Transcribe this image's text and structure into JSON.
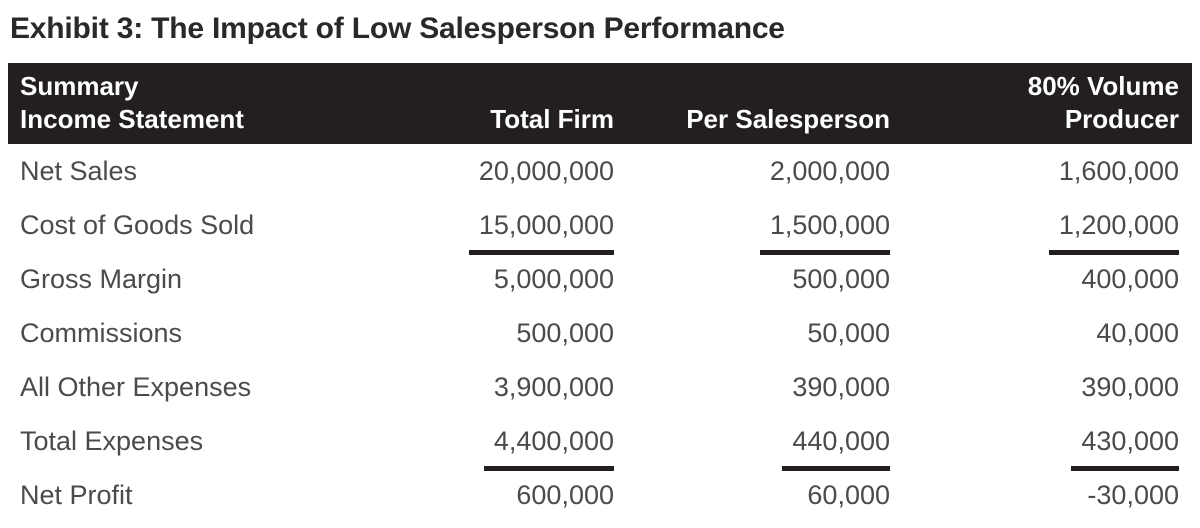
{
  "title": "Exhibit 3: The Impact of Low Salesperson Performance",
  "colors": {
    "header_bg": "#231f20",
    "header_text": "#ffffff",
    "title_text": "#2b2829",
    "body_text": "#4b4b4b",
    "underline": "#231f20"
  },
  "table": {
    "header": {
      "col1_line1": "Summary",
      "col1_line2": "Income Statement",
      "col2": "Total Firm",
      "col3": "Per Salesperson",
      "col4_line1": "80% Volume",
      "col4_line2": "Producer"
    },
    "rows": [
      {
        "label": "Net Sales",
        "total_firm": "20,000,000",
        "per_salesperson": "2,000,000",
        "volume_producer": "1,600,000",
        "underline": false
      },
      {
        "label": "Cost of Goods Sold",
        "total_firm": "15,000,000",
        "per_salesperson": "1,500,000",
        "volume_producer": "1,200,000",
        "underline": true
      },
      {
        "label": "Gross Margin",
        "total_firm": "5,000,000",
        "per_salesperson": "500,000",
        "volume_producer": "400,000",
        "underline": false
      },
      {
        "label": "Commissions",
        "total_firm": "500,000",
        "per_salesperson": "50,000",
        "volume_producer": "40,000",
        "underline": false
      },
      {
        "label": "All Other Expenses",
        "total_firm": "3,900,000",
        "per_salesperson": "390,000",
        "volume_producer": "390,000",
        "underline": false
      },
      {
        "label": "Total Expenses",
        "total_firm": "4,400,000",
        "per_salesperson": "440,000",
        "volume_producer": "430,000",
        "underline": true
      },
      {
        "label": "Net Profit",
        "total_firm": "600,000",
        "per_salesperson": "60,000",
        "volume_producer": "-30,000",
        "underline": false
      }
    ]
  }
}
